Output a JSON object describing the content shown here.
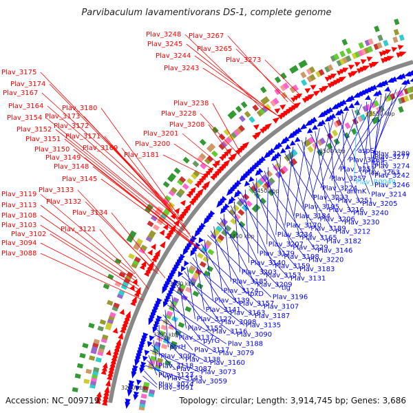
{
  "title": "Parvibaculum lavamentivorans DS-1, complete genome",
  "footer": {
    "accession": "Accession: NC_009719",
    "summary": "Topology: circular; Length: 3,914,745 bp; Genes: 3,686"
  },
  "colors": {
    "forward_strand": "#ff0000",
    "reverse_strand": "#0000ff",
    "highlight_label": "#33ccff",
    "backbone": "#888888"
  },
  "kbp_ticks": [
    "3250 kbp",
    "3300 kbp",
    "3350 kbp",
    "3400 kbp",
    "3450 kbp",
    "3500 kbp",
    "3550 kbp"
  ],
  "left_labels": [
    "Plav_3248",
    "Plav_3267",
    "Plav_3245",
    "Plav_3265",
    "Plav_3244",
    "Plav_3273",
    "Plav_3243",
    "Plav_3175",
    "Plav_3174",
    "Plav_3167",
    "Plav_3164",
    "Plav_3180",
    "Plav_3173",
    "Plav_3154",
    "Plav_3172",
    "Plav_3152",
    "Plav_3171",
    "Plav_3151",
    "Plav_3169",
    "Plav_3150",
    "Plav_3149",
    "Plav_3148",
    "Plav_3145",
    "Plav_3238",
    "Plav_3228",
    "Plav_3208",
    "Plav_3201",
    "Plav_3200",
    "Plav_3181",
    "Plav_3119",
    "Plav_3133",
    "Plav_3113",
    "Plav_3132",
    "Plav_3108",
    "Plav_3134",
    "Plav_3103",
    "Plav_3121",
    "Plav_3102",
    "Plav_3094",
    "Plav_3088"
  ],
  "right_labels": [
    "aspS",
    "Plav_3289",
    "Plav_3277",
    "Plav_3269",
    "thiG",
    "Plav_3274",
    "Plav_3253",
    "Plav_3263",
    "Plav_3242",
    "Plav_3257",
    "Plav_R0049",
    "Plav_3246",
    "Plav_3224",
    "anmK",
    "Plav_3214",
    "Plav_3233",
    "Plav_3251",
    "Plav_3205",
    "Plav_3195",
    "Plav_3216",
    "Plav_3240",
    "Plav_3184",
    "Plav_3206",
    "Plav_3230",
    "Plav_3170",
    "Plav_3189",
    "Plav_3212",
    "Plav_3234",
    "Plav_3165",
    "Plav_3182",
    "Plav_3207",
    "Plav_3229",
    "Plav_3146",
    "Plav_3179",
    "Plav_3198",
    "Plav_3220",
    "Plav_3140",
    "Plav_3159",
    "Plav_3183",
    "Plav_3203",
    "Plav_3153",
    "Plav_3131",
    "Plav_3185",
    "Plav_3209",
    "tig",
    "Plav_3124",
    "lpxD",
    "Plav_3196",
    "Plav_3139",
    "Plav_3157",
    "Plav_3107",
    "Plav_3141",
    "Plav_3163",
    "Plav_3187",
    "Plav_3122",
    "Plav_3098",
    "Plav_3135",
    "Plav_3155",
    "Plav_3116",
    "Plav_3090",
    "Plav_3137",
    "pyrG",
    "Plav_3188",
    "pyrH",
    "Plav_3117",
    "Plav_3079",
    "Plav_3092",
    "Plav_3138",
    "Plav_3160",
    "Plav_3118",
    "Plav_3087",
    "Plav_3073",
    "Plav_3123",
    "Plav_3143",
    "Plav_3059",
    "Plav_3074",
    "Plav_3091"
  ]
}
